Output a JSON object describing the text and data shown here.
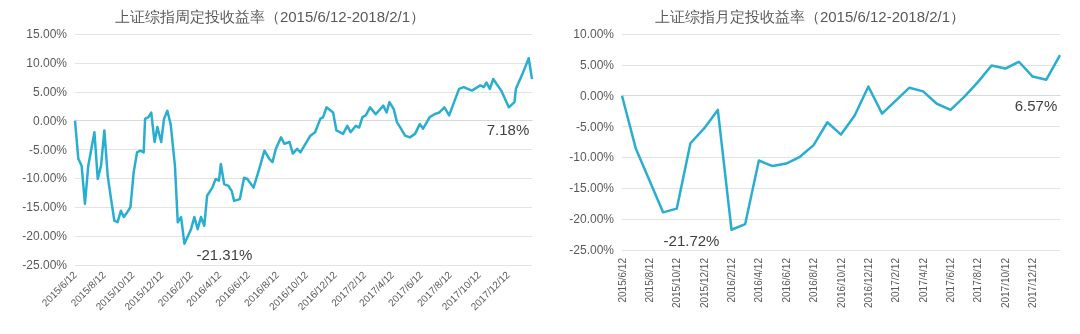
{
  "chart_data": [
    {
      "type": "line",
      "title": "上证综指周定投收益率（2015/6/12-2018/2/1）",
      "grid": "y",
      "marker": "none",
      "color": "#2aaed0",
      "x": [
        "2015-06-12",
        "2015-06-19",
        "2015-06-26",
        "2015-07-03",
        "2015-07-10",
        "2015-07-23",
        "2015-07-30",
        "2015-08-06",
        "2015-08-13",
        "2015-08-20",
        "2015-08-27",
        "2015-09-03",
        "2015-09-10",
        "2015-09-17",
        "2015-09-23",
        "2015-09-30",
        "2015-10-07",
        "2015-10-14",
        "2015-10-21",
        "2015-10-28",
        "2015-11-04",
        "2015-11-07",
        "2015-11-14",
        "2015-11-20",
        "2015-11-27",
        "2015-12-03",
        "2015-12-11",
        "2015-12-17",
        "2015-12-24",
        "2015-12-31",
        "2016-01-09",
        "2016-01-15",
        "2016-01-22",
        "2016-01-29",
        "2016-02-12",
        "2016-02-19",
        "2016-02-26",
        "2016-03-04",
        "2016-03-11",
        "2016-03-17",
        "2016-03-28",
        "2016-04-04",
        "2016-04-11",
        "2016-04-15",
        "2016-04-22",
        "2016-05-01",
        "2016-05-08",
        "2016-05-13",
        "2016-05-25",
        "2016-06-03",
        "2016-06-10",
        "2016-06-23",
        "2016-07-06",
        "2016-07-16",
        "2016-07-26",
        "2016-08-02",
        "2016-08-09",
        "2016-08-20",
        "2016-08-27",
        "2016-09-07",
        "2016-09-14",
        "2016-09-23",
        "2016-09-30",
        "2016-10-21",
        "2016-10-31",
        "2016-11-11",
        "2016-11-17",
        "2016-11-24",
        "2016-12-08",
        "2016-12-15",
        "2016-12-29",
        "2017-01-07",
        "2017-01-14",
        "2017-01-25",
        "2017-02-01",
        "2017-02-08",
        "2017-02-15",
        "2017-02-24",
        "2017-03-08",
        "2017-03-24",
        "2017-03-31",
        "2017-04-06",
        "2017-04-15",
        "2017-04-22",
        "2017-04-29",
        "2017-05-09",
        "2017-05-19",
        "2017-05-30",
        "2017-06-09",
        "2017-06-16",
        "2017-06-30",
        "2017-07-10",
        "2017-07-20",
        "2017-07-31",
        "2017-08-10",
        "2017-08-31",
        "2017-09-10",
        "2017-09-27",
        "2017-10-15",
        "2017-10-22",
        "2017-10-28",
        "2017-11-04",
        "2017-11-11",
        "2017-11-28",
        "2017-12-14",
        "2017-12-26",
        "2017-12-29",
        "2018-01-12",
        "2018-01-25",
        "2018-02-01"
      ],
      "values": [
        0,
        -6.6,
        -7.8,
        -14.4,
        -7.8,
        -2.0,
        -10.1,
        -7.8,
        -1.7,
        -9.5,
        -13.5,
        -17.3,
        -17.6,
        -15.6,
        -16.7,
        -15.9,
        -15.0,
        -8.9,
        -5.5,
        -5.2,
        -5.5,
        0.3,
        0.6,
        1.4,
        -3.7,
        -1.1,
        -3.7,
        0.3,
        1.7,
        -0.6,
        -7.8,
        -17.6,
        -16.7,
        -21.31,
        -18.8,
        -16.7,
        -18.8,
        -16.7,
        -18.2,
        -13.0,
        -11.6,
        -10.1,
        -10.4,
        -7.5,
        -11.0,
        -11.3,
        -12.2,
        -13.9,
        -13.6,
        -9.9,
        -10.1,
        -11.6,
        -8.1,
        -5.2,
        -6.6,
        -7.2,
        -4.9,
        -2.9,
        -4.0,
        -3.7,
        -5.7,
        -4.9,
        -5.5,
        -2.6,
        -2.0,
        0.3,
        0.6,
        2.3,
        1.4,
        -1.7,
        -2.3,
        -0.9,
        -2.0,
        -0.9,
        -1.2,
        0.6,
        0.9,
        2.3,
        1.1,
        2.6,
        1.4,
        3.2,
        2.0,
        -0.3,
        -1.2,
        -2.6,
        -2.9,
        -2.3,
        -0.6,
        -1.4,
        0.6,
        1.1,
        1.4,
        2.3,
        0.9,
        5.5,
        5.8,
        5.2,
        6.1,
        5.8,
        6.6,
        5.5,
        7.2,
        5.2,
        2.3,
        3.2,
        5.5,
        8.1,
        10.8,
        7.18
      ],
      "xlim": [
        "2015-06-12",
        "2018-02-01"
      ],
      "xticks": [
        {
          "value": "2015-06-12",
          "label": "2015/6/12"
        },
        {
          "value": "2015-08-12",
          "label": "2015/8/12"
        },
        {
          "value": "2015-10-12",
          "label": "2015/10/12"
        },
        {
          "value": "2015-12-12",
          "label": "2015/12/12"
        },
        {
          "value": "2016-02-12",
          "label": "2016/2/12"
        },
        {
          "value": "2016-04-12",
          "label": "2016/4/12"
        },
        {
          "value": "2016-06-12",
          "label": "2016/6/12"
        },
        {
          "value": "2016-08-12",
          "label": "2016/8/12"
        },
        {
          "value": "2016-10-12",
          "label": "2016/10/12"
        },
        {
          "value": "2016-12-12",
          "label": "2016/12/12"
        },
        {
          "value": "2017-02-12",
          "label": "2017/2/12"
        },
        {
          "value": "2017-04-12",
          "label": "2017/4/12"
        },
        {
          "value": "2017-06-12",
          "label": "2017/6/12"
        },
        {
          "value": "2017-08-12",
          "label": "2017/8/12"
        },
        {
          "value": "2017-10-12",
          "label": "2017/10/12"
        },
        {
          "value": "2017-12-12",
          "label": "2017/12/12"
        }
      ],
      "ylim": [
        -25,
        15
      ],
      "yticks": [
        {
          "value": -25,
          "label": "-25.00%"
        },
        {
          "value": -20,
          "label": "-20.00%"
        },
        {
          "value": -15,
          "label": "-15.00%"
        },
        {
          "value": -10,
          "label": "-10.00%"
        },
        {
          "value": -5,
          "label": "-5.00%"
        },
        {
          "value": 0,
          "label": "0.00%"
        },
        {
          "value": 5,
          "label": "5.00%"
        },
        {
          "value": 10,
          "label": "10.00%"
        },
        {
          "value": 15,
          "label": "15.00%"
        }
      ],
      "annotations": [
        {
          "text": "-21.31%",
          "x": "2016-01-29",
          "y": -21.31
        },
        {
          "text": "7.18%",
          "x": "2018-02-01",
          "y": 7.18
        }
      ]
    },
    {
      "type": "line",
      "title": "上证综指月定投收益率（2015/6/12-2018/2/1）",
      "grid": "y",
      "marker": "none",
      "color": "#2aaed0",
      "categories": [
        "2015/6/12",
        null,
        "2015/8/12",
        null,
        "2015/10/12",
        null,
        "2015/12/12",
        null,
        "2016/2/12",
        null,
        "2016/4/12",
        null,
        "2016/6/12",
        null,
        "2016/8/12",
        null,
        "2016/10/12",
        null,
        "2016/12/12",
        null,
        "2017/2/12",
        null,
        "2017/4/12",
        null,
        "2017/6/12",
        null,
        "2017/8/12",
        null,
        "2017/10/12",
        null,
        "2017/12/12",
        null,
        null
      ],
      "values": [
        0,
        -8.5,
        -13.7,
        -18.9,
        -18.3,
        -7.7,
        -5.3,
        -2.3,
        -21.72,
        -20.8,
        -10.5,
        -11.4,
        -11.0,
        -9.9,
        -8.0,
        -4.3,
        -6.3,
        -3.2,
        1.5,
        -2.9,
        -0.8,
        1.3,
        0.7,
        -1.3,
        -2.3,
        -0.2,
        2.2,
        4.9,
        4.4,
        5.5,
        3.1,
        2.6,
        6.57
      ],
      "ylim": [
        -25,
        10
      ],
      "yticks": [
        {
          "value": -25,
          "label": "-25.00%"
        },
        {
          "value": -20,
          "label": "-20.00%"
        },
        {
          "value": -15,
          "label": "-15.00%"
        },
        {
          "value": -10,
          "label": "-10.00%"
        },
        {
          "value": -5,
          "label": "-5.00%"
        },
        {
          "value": 0,
          "label": "0.00%"
        },
        {
          "value": 5,
          "label": "5.00%"
        },
        {
          "value": 10,
          "label": "10.00%"
        }
      ],
      "annotations": [
        {
          "text": "-21.72%",
          "x": "2016/2/12",
          "y": -21.72
        },
        "6.57%"
      ]
    }
  ]
}
